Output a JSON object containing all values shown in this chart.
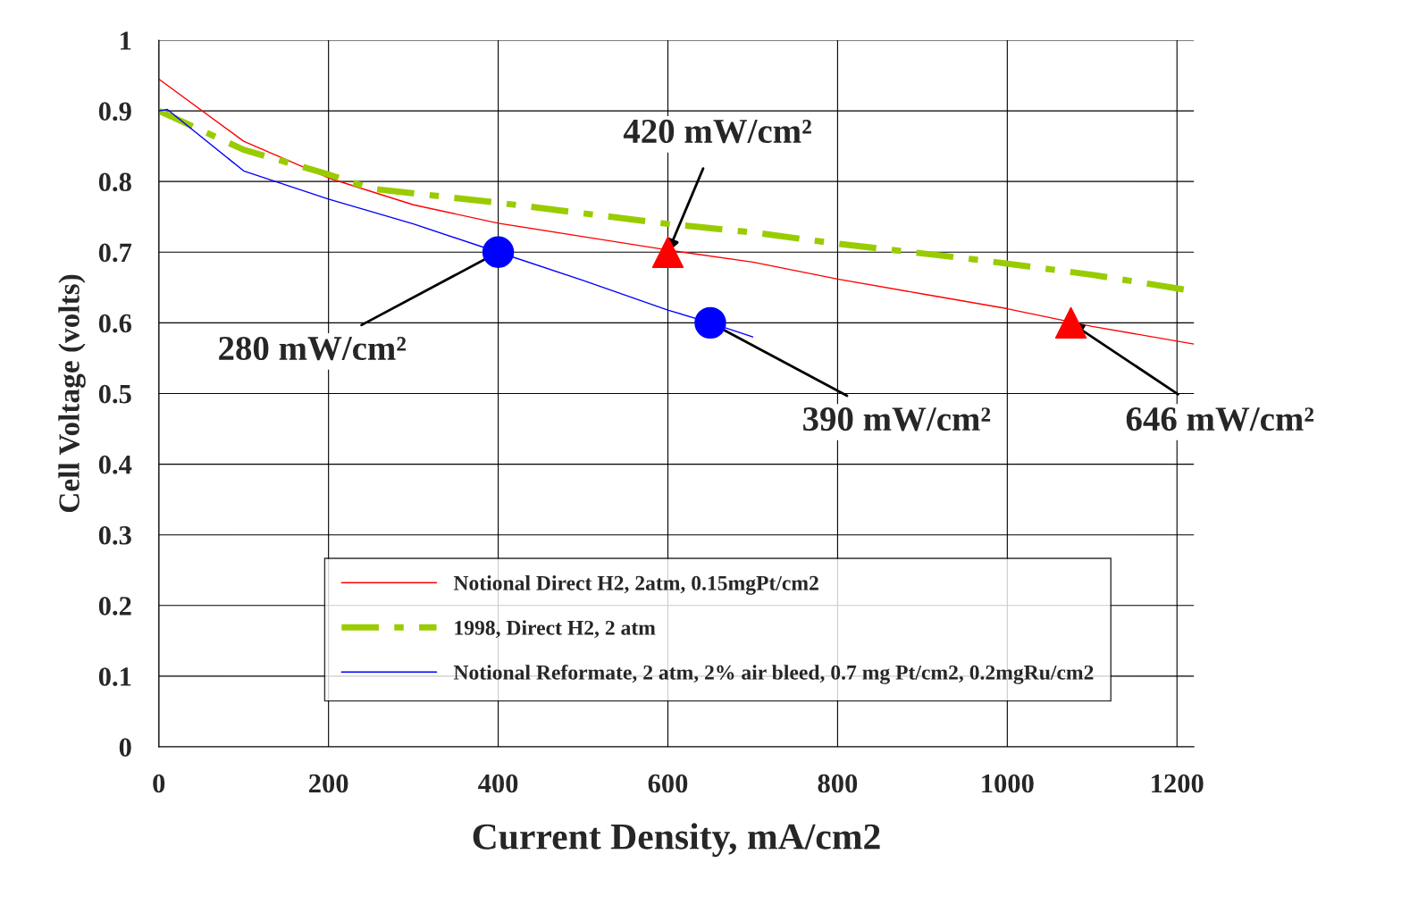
{
  "chart_data": {
    "type": "line",
    "xlabel": "Current Density, mA/cm2",
    "ylabel": "Cell Voltage (volts)",
    "xlim": [
      0,
      1220
    ],
    "xticks": [
      0,
      200,
      400,
      600,
      800,
      1000,
      1200
    ],
    "ylim": [
      0,
      1
    ],
    "yticks": [
      0,
      0.1,
      0.2,
      0.3,
      0.4,
      0.5,
      0.6,
      0.7,
      0.8,
      0.9,
      1
    ],
    "grid": true,
    "legend": "bottom",
    "series": [
      {
        "name": "Notional Direct H2, 2atm, 0.15mgPt/cm2",
        "color": "#ff0000",
        "line_style": "solid",
        "x": [
          0,
          100,
          200,
          300,
          400,
          500,
          600,
          700,
          800,
          900,
          1000,
          1100,
          1220
        ],
        "values": [
          0.945,
          0.857,
          0.805,
          0.767,
          0.741,
          0.722,
          0.703,
          0.686,
          0.662,
          0.641,
          0.62,
          0.595,
          0.57
        ]
      },
      {
        "name": "1998, Direct H2, 2 atm",
        "color": "#99cc00",
        "line_style": "dashed",
        "x": [
          0,
          100,
          200,
          250,
          400,
          600,
          700,
          800,
          960,
          1100,
          1220
        ],
        "values": [
          0.9,
          0.845,
          0.81,
          0.79,
          0.77,
          0.74,
          0.728,
          0.712,
          0.69,
          0.668,
          0.645
        ]
      },
      {
        "name": "Notional Reformate, 2 atm, 2% air bleed, 0.7 mg Pt/cm2, 0.2mgRu/cm2",
        "color": "#0000ff",
        "line_style": "solid",
        "x": [
          0,
          10,
          100,
          200,
          300,
          400,
          500,
          600,
          650,
          700
        ],
        "values": [
          0.9,
          0.902,
          0.815,
          0.775,
          0.74,
          0.7,
          0.66,
          0.618,
          0.6,
          0.58
        ]
      },
      {
        "type": "scatter",
        "marker": "circle",
        "color": "#0000ff",
        "x": [
          400,
          650
        ],
        "values": [
          0.7,
          0.6
        ]
      },
      {
        "type": "scatter",
        "marker": "triangle",
        "color": "#ff0000",
        "x": [
          600,
          1075
        ],
        "values": [
          0.7,
          0.6
        ]
      }
    ],
    "annotations": [
      {
        "text": "280 mW/cm²",
        "x": 400,
        "y": 0.7
      },
      {
        "text": "420 mW/cm²",
        "x": 600,
        "y": 0.7
      },
      {
        "text": "390 mW/cm²",
        "x": 650,
        "y": 0.6
      },
      {
        "text": "646 mW/cm²",
        "x": 1075,
        "y": 0.6
      }
    ]
  }
}
